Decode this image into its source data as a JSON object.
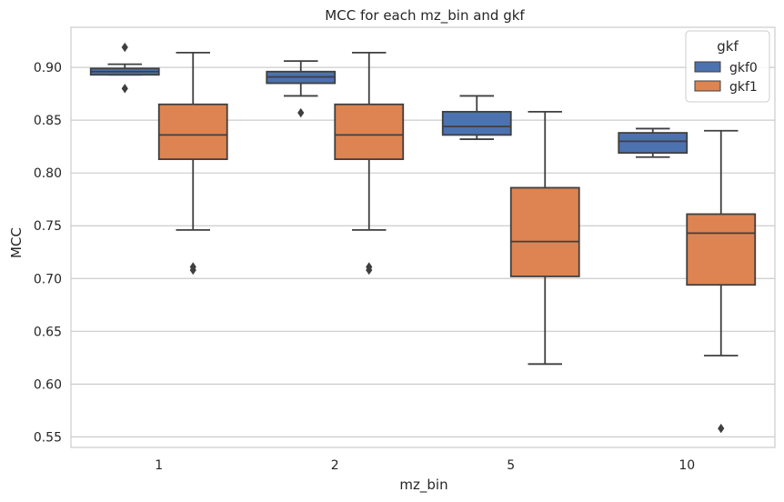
{
  "chart_data": {
    "type": "box",
    "title": "MCC for each mz_bin and gkf",
    "xlabel": "mz_bin",
    "ylabel": "MCC",
    "categories": [
      "1",
      "2",
      "5",
      "10"
    ],
    "ylim": [
      0.54,
      0.938
    ],
    "yticks": [
      0.55,
      0.6,
      0.65,
      0.7,
      0.75,
      0.8,
      0.85,
      0.9
    ],
    "ytick_labels": [
      "0.55",
      "0.60",
      "0.65",
      "0.70",
      "0.75",
      "0.80",
      "0.85",
      "0.90"
    ],
    "grid": true,
    "legend": {
      "title": "gkf",
      "position": "top-right"
    },
    "series": [
      {
        "name": "gkf0",
        "color": "#4c72b0",
        "boxes": [
          {
            "category": "1",
            "whisker_low": 0.893,
            "q1": 0.893,
            "median": 0.896,
            "q3": 0.899,
            "whisker_high": 0.903,
            "outliers": [
              0.919,
              0.88
            ]
          },
          {
            "category": "2",
            "whisker_low": 0.873,
            "q1": 0.885,
            "median": 0.891,
            "q3": 0.896,
            "whisker_high": 0.906,
            "outliers": [
              0.857
            ]
          },
          {
            "category": "5",
            "whisker_low": 0.832,
            "q1": 0.836,
            "median": 0.844,
            "q3": 0.858,
            "whisker_high": 0.873,
            "outliers": []
          },
          {
            "category": "10",
            "whisker_low": 0.815,
            "q1": 0.819,
            "median": 0.83,
            "q3": 0.838,
            "whisker_high": 0.842,
            "outliers": []
          }
        ]
      },
      {
        "name": "gkf1",
        "color": "#dd8452",
        "boxes": [
          {
            "category": "1",
            "whisker_low": 0.746,
            "q1": 0.813,
            "median": 0.836,
            "q3": 0.865,
            "whisker_high": 0.914,
            "outliers": [
              0.711,
              0.708
            ]
          },
          {
            "category": "2",
            "whisker_low": 0.746,
            "q1": 0.813,
            "median": 0.836,
            "q3": 0.865,
            "whisker_high": 0.914,
            "outliers": [
              0.711,
              0.708
            ]
          },
          {
            "category": "5",
            "whisker_low": 0.619,
            "q1": 0.702,
            "median": 0.735,
            "q3": 0.786,
            "whisker_high": 0.858,
            "outliers": []
          },
          {
            "category": "10",
            "whisker_low": 0.627,
            "q1": 0.694,
            "median": 0.743,
            "q3": 0.761,
            "whisker_high": 0.84,
            "outliers": [
              0.558
            ]
          }
        ]
      }
    ]
  }
}
